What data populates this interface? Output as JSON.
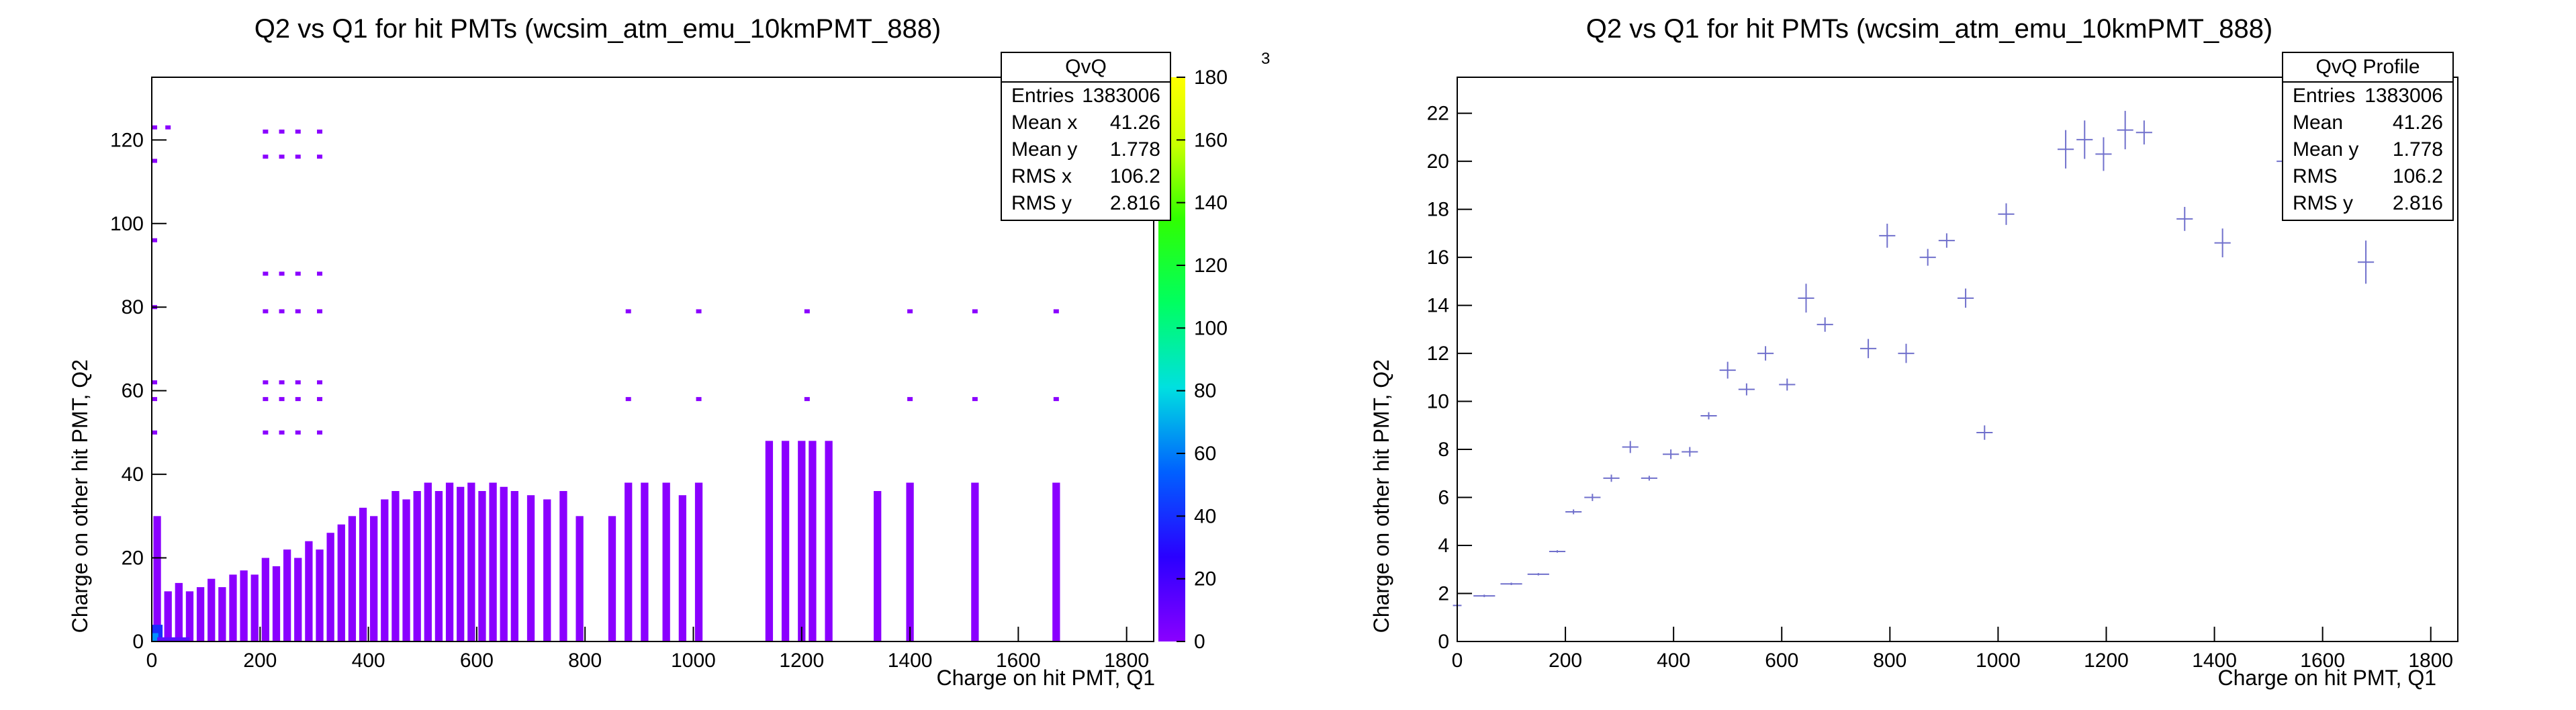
{
  "colors": {
    "axis": "#000000",
    "profile_marker": "#7070cc",
    "hist_fill": "#8a00ff"
  },
  "left_panel": {
    "title": "Q2 vs Q1 for hit PMTs (wcsim_atm_emu_10kmPMT_888)",
    "xlabel": "Charge on hit PMT, Q1",
    "ylabel": "Charge on other hit PMT, Q2",
    "stats": {
      "title": "QvQ",
      "rows": [
        {
          "label": "Entries",
          "value": "1383006"
        },
        {
          "label": "Mean x",
          "value": "41.26"
        },
        {
          "label": "Mean y",
          "value": "1.778"
        },
        {
          "label": "RMS x",
          "value": "106.2"
        },
        {
          "label": "RMS y",
          "value": "2.816"
        }
      ]
    }
  },
  "right_panel": {
    "title": "Q2 vs Q1 for hit PMTs (wcsim_atm_emu_10kmPMT_888)",
    "xlabel": "Charge on hit PMT, Q1",
    "ylabel": "Charge on other hit PMT, Q2",
    "stats": {
      "title": "QvQ Profile",
      "rows": [
        {
          "label": "Entries",
          "value": "1383006"
        },
        {
          "label": "Mean",
          "value": "41.26"
        },
        {
          "label": "Mean y",
          "value": "1.778"
        },
        {
          "label": "RMS",
          "value": "106.2"
        },
        {
          "label": "RMS y",
          "value": "2.816"
        }
      ]
    }
  },
  "chart_data": [
    {
      "type": "heatmap",
      "title": "Q2 vs Q1 for hit PMTs (wcsim_atm_emu_10kmPMT_888)",
      "xlabel": "Charge on hit PMT, Q1",
      "ylabel": "Charge on other hit PMT, Q2",
      "xlim": [
        0,
        1850
      ],
      "ylim": [
        0,
        135
      ],
      "x_ticks": [
        0,
        200,
        400,
        600,
        800,
        1000,
        1200,
        1400,
        1600,
        1800
      ],
      "y_ticks": [
        0,
        20,
        40,
        60,
        80,
        100,
        120
      ],
      "colorbar": {
        "min": 0,
        "max": 180,
        "ticks": [
          0,
          20,
          40,
          60,
          80,
          100,
          120,
          140,
          160,
          180
        ],
        "exponent_label": "3"
      },
      "columns": [
        {
          "x": 10,
          "ymax": 30
        },
        {
          "x": 30,
          "ymax": 12
        },
        {
          "x": 50,
          "ymax": 14
        },
        {
          "x": 70,
          "ymax": 12
        },
        {
          "x": 90,
          "ymax": 13
        },
        {
          "x": 110,
          "ymax": 15
        },
        {
          "x": 130,
          "ymax": 13
        },
        {
          "x": 150,
          "ymax": 16
        },
        {
          "x": 170,
          "ymax": 17
        },
        {
          "x": 190,
          "ymax": 16
        },
        {
          "x": 210,
          "ymax": 20
        },
        {
          "x": 230,
          "ymax": 18
        },
        {
          "x": 250,
          "ymax": 22
        },
        {
          "x": 270,
          "ymax": 20
        },
        {
          "x": 290,
          "ymax": 24
        },
        {
          "x": 310,
          "ymax": 22
        },
        {
          "x": 330,
          "ymax": 26
        },
        {
          "x": 350,
          "ymax": 28
        },
        {
          "x": 370,
          "ymax": 30
        },
        {
          "x": 390,
          "ymax": 32
        },
        {
          "x": 410,
          "ymax": 30
        },
        {
          "x": 430,
          "ymax": 34
        },
        {
          "x": 450,
          "ymax": 36
        },
        {
          "x": 470,
          "ymax": 34
        },
        {
          "x": 490,
          "ymax": 36
        },
        {
          "x": 510,
          "ymax": 38
        },
        {
          "x": 530,
          "ymax": 36
        },
        {
          "x": 550,
          "ymax": 38
        },
        {
          "x": 570,
          "ymax": 37
        },
        {
          "x": 590,
          "ymax": 38
        },
        {
          "x": 610,
          "ymax": 36
        },
        {
          "x": 630,
          "ymax": 38
        },
        {
          "x": 650,
          "ymax": 37
        },
        {
          "x": 670,
          "ymax": 36
        },
        {
          "x": 700,
          "ymax": 35
        },
        {
          "x": 730,
          "ymax": 34
        },
        {
          "x": 760,
          "ymax": 36
        },
        {
          "x": 790,
          "ymax": 30
        },
        {
          "x": 850,
          "ymax": 30
        },
        {
          "x": 880,
          "ymax": 38
        },
        {
          "x": 910,
          "ymax": 38
        },
        {
          "x": 950,
          "ymax": 38
        },
        {
          "x": 980,
          "ymax": 35
        },
        {
          "x": 1010,
          "ymax": 38
        },
        {
          "x": 1140,
          "ymax": 48
        },
        {
          "x": 1170,
          "ymax": 48
        },
        {
          "x": 1200,
          "ymax": 48
        },
        {
          "x": 1220,
          "ymax": 48
        },
        {
          "x": 1250,
          "ymax": 48
        },
        {
          "x": 1340,
          "ymax": 36
        },
        {
          "x": 1400,
          "ymax": 38
        },
        {
          "x": 1520,
          "ymax": 38
        },
        {
          "x": 1670,
          "ymax": 38
        }
      ],
      "isolated_points": [
        {
          "x": 5,
          "y": 123
        },
        {
          "x": 30,
          "y": 123
        },
        {
          "x": 5,
          "y": 115
        },
        {
          "x": 5,
          "y": 96
        },
        {
          "x": 5,
          "y": 80
        },
        {
          "x": 5,
          "y": 62
        },
        {
          "x": 5,
          "y": 58
        },
        {
          "x": 5,
          "y": 50
        },
        {
          "x": 210,
          "y": 122
        },
        {
          "x": 240,
          "y": 122
        },
        {
          "x": 270,
          "y": 122
        },
        {
          "x": 310,
          "y": 122
        },
        {
          "x": 210,
          "y": 116
        },
        {
          "x": 240,
          "y": 116
        },
        {
          "x": 270,
          "y": 116
        },
        {
          "x": 310,
          "y": 116
        },
        {
          "x": 210,
          "y": 88
        },
        {
          "x": 240,
          "y": 88
        },
        {
          "x": 270,
          "y": 88
        },
        {
          "x": 310,
          "y": 88
        },
        {
          "x": 210,
          "y": 79
        },
        {
          "x": 240,
          "y": 79
        },
        {
          "x": 270,
          "y": 79
        },
        {
          "x": 310,
          "y": 79
        },
        {
          "x": 210,
          "y": 62
        },
        {
          "x": 240,
          "y": 62
        },
        {
          "x": 270,
          "y": 62
        },
        {
          "x": 310,
          "y": 62
        },
        {
          "x": 210,
          "y": 58
        },
        {
          "x": 240,
          "y": 58
        },
        {
          "x": 270,
          "y": 58
        },
        {
          "x": 310,
          "y": 58
        },
        {
          "x": 210,
          "y": 50
        },
        {
          "x": 240,
          "y": 50
        },
        {
          "x": 270,
          "y": 50
        },
        {
          "x": 310,
          "y": 50
        },
        {
          "x": 880,
          "y": 79
        },
        {
          "x": 1010,
          "y": 79
        },
        {
          "x": 1210,
          "y": 79
        },
        {
          "x": 1400,
          "y": 79
        },
        {
          "x": 1520,
          "y": 79
        },
        {
          "x": 1670,
          "y": 79
        },
        {
          "x": 880,
          "y": 58
        },
        {
          "x": 1010,
          "y": 58
        },
        {
          "x": 1210,
          "y": 58
        },
        {
          "x": 1400,
          "y": 58
        },
        {
          "x": 1520,
          "y": 58
        },
        {
          "x": 1670,
          "y": 58
        }
      ]
    },
    {
      "type": "scatter",
      "title": "Q2 vs Q1 for hit PMTs (wcsim_atm_emu_10kmPMT_888)",
      "xlabel": "Charge on hit PMT, Q1",
      "ylabel": "Charge on other hit PMT, Q2",
      "xlim": [
        0,
        1850
      ],
      "ylim": [
        0,
        23.5
      ],
      "x_ticks": [
        0,
        200,
        400,
        600,
        800,
        1000,
        1200,
        1400,
        1600,
        1800
      ],
      "y_ticks": [
        0,
        2,
        4,
        6,
        8,
        10,
        12,
        14,
        16,
        18,
        20,
        22
      ],
      "series": [
        {
          "points": [
            {
              "x": 0,
              "y": 1.5,
              "xerr": 8,
              "yerr": 0.6
            },
            {
              "x": 50,
              "y": 1.9,
              "xerr": 20,
              "yerr": 0.05
            },
            {
              "x": 100,
              "y": 2.4,
              "xerr": 20,
              "yerr": 0.05
            },
            {
              "x": 150,
              "y": 2.8,
              "xerr": 20,
              "yerr": 0.05
            },
            {
              "x": 185,
              "y": 3.75,
              "xerr": 15,
              "yerr": 0.05
            },
            {
              "x": 215,
              "y": 5.4,
              "xerr": 15,
              "yerr": 0.1
            },
            {
              "x": 250,
              "y": 6.0,
              "xerr": 15,
              "yerr": 0.15
            },
            {
              "x": 285,
              "y": 6.8,
              "xerr": 15,
              "yerr": 0.15
            },
            {
              "x": 320,
              "y": 8.1,
              "xerr": 15,
              "yerr": 0.25
            },
            {
              "x": 355,
              "y": 6.8,
              "xerr": 15,
              "yerr": 0.1
            },
            {
              "x": 395,
              "y": 7.8,
              "xerr": 15,
              "yerr": 0.2
            },
            {
              "x": 430,
              "y": 7.9,
              "xerr": 15,
              "yerr": 0.2
            },
            {
              "x": 465,
              "y": 9.4,
              "xerr": 15,
              "yerr": 0.15
            },
            {
              "x": 500,
              "y": 11.3,
              "xerr": 15,
              "yerr": 0.35
            },
            {
              "x": 535,
              "y": 10.5,
              "xerr": 15,
              "yerr": 0.25
            },
            {
              "x": 570,
              "y": 12.0,
              "xerr": 15,
              "yerr": 0.3
            },
            {
              "x": 610,
              "y": 10.7,
              "xerr": 15,
              "yerr": 0.25
            },
            {
              "x": 645,
              "y": 14.3,
              "xerr": 15,
              "yerr": 0.6
            },
            {
              "x": 680,
              "y": 13.2,
              "xerr": 15,
              "yerr": 0.3
            },
            {
              "x": 760,
              "y": 12.2,
              "xerr": 15,
              "yerr": 0.4
            },
            {
              "x": 795,
              "y": 16.9,
              "xerr": 15,
              "yerr": 0.5
            },
            {
              "x": 830,
              "y": 12.0,
              "xerr": 15,
              "yerr": 0.4
            },
            {
              "x": 870,
              "y": 16.0,
              "xerr": 15,
              "yerr": 0.35
            },
            {
              "x": 905,
              "y": 16.7,
              "xerr": 15,
              "yerr": 0.3
            },
            {
              "x": 940,
              "y": 14.3,
              "xerr": 15,
              "yerr": 0.4
            },
            {
              "x": 975,
              "y": 8.7,
              "xerr": 15,
              "yerr": 0.3
            },
            {
              "x": 1015,
              "y": 17.8,
              "xerr": 15,
              "yerr": 0.45
            },
            {
              "x": 1125,
              "y": 20.5,
              "xerr": 15,
              "yerr": 0.8
            },
            {
              "x": 1160,
              "y": 20.9,
              "xerr": 15,
              "yerr": 0.8
            },
            {
              "x": 1195,
              "y": 20.3,
              "xerr": 15,
              "yerr": 0.7
            },
            {
              "x": 1235,
              "y": 21.3,
              "xerr": 15,
              "yerr": 0.8
            },
            {
              "x": 1270,
              "y": 21.2,
              "xerr": 15,
              "yerr": 0.5
            },
            {
              "x": 1345,
              "y": 17.6,
              "xerr": 15,
              "yerr": 0.5
            },
            {
              "x": 1415,
              "y": 16.6,
              "xerr": 15,
              "yerr": 0.6
            },
            {
              "x": 1530,
              "y": 20.0,
              "xerr": 15,
              "yerr": 1.4
            },
            {
              "x": 1680,
              "y": 15.8,
              "xerr": 15,
              "yerr": 0.9
            }
          ]
        }
      ]
    }
  ]
}
